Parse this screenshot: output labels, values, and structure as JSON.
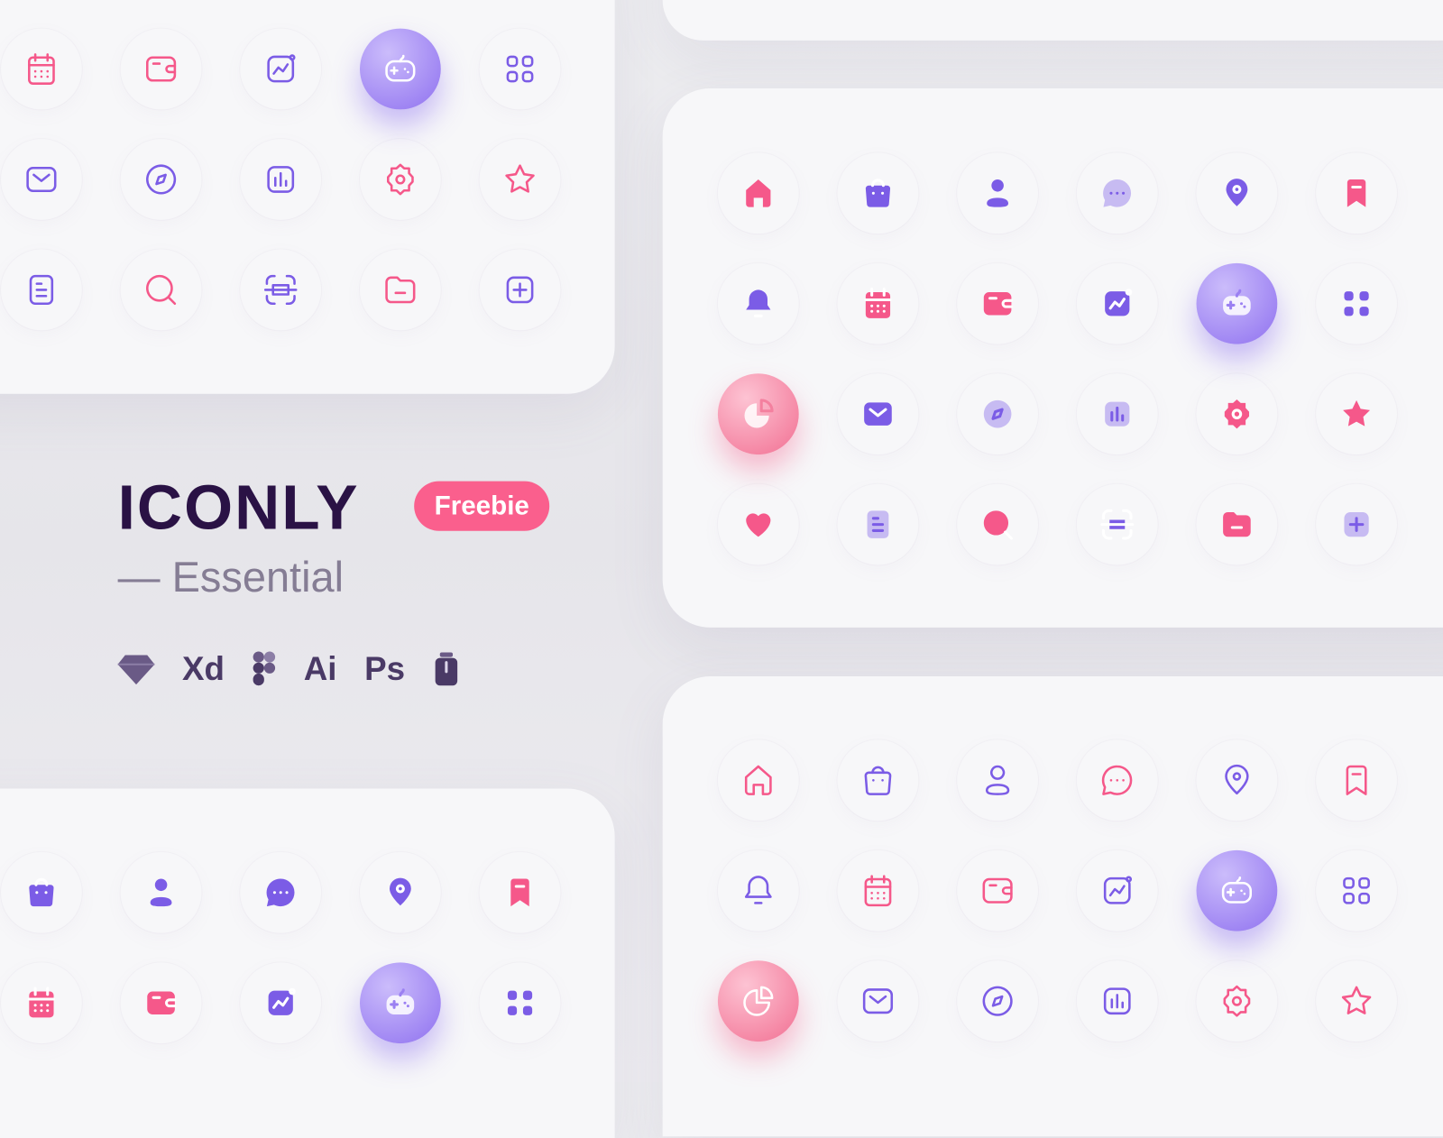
{
  "brand": {
    "title": "ICONLY",
    "badge": "Freebie",
    "subtitle": "— Essential",
    "tools": [
      {
        "kind": "icon",
        "name": "sketch-icon"
      },
      {
        "kind": "text",
        "label": "Xd"
      },
      {
        "kind": "icon",
        "name": "figma-icon"
      },
      {
        "kind": "text",
        "label": "Ai"
      },
      {
        "kind": "text",
        "label": "Ps"
      },
      {
        "kind": "icon",
        "name": "iconjar-icon"
      }
    ]
  },
  "colors": {
    "pink": "#f5588a",
    "purple": "#7b5ce6",
    "lilac": "#c7bbf2",
    "title": "#2a1245",
    "badge": "#fa5f8d"
  },
  "panels": {
    "top_left": {
      "style": "outline",
      "rows": [
        [
          [
            "calendar",
            "pink"
          ],
          [
            "wallet",
            "pink"
          ],
          [
            "activity",
            "purple"
          ],
          [
            "game",
            "hl-purple"
          ],
          [
            "category",
            "purple"
          ]
        ],
        [
          [
            "message",
            "purple"
          ],
          [
            "discovery",
            "purple"
          ],
          [
            "chart",
            "purple"
          ],
          [
            "setting",
            "pink"
          ],
          [
            "star",
            "pink"
          ]
        ],
        [
          [
            "document",
            "purple"
          ],
          [
            "search",
            "pink"
          ],
          [
            "scan",
            "purple"
          ],
          [
            "folder",
            "pink"
          ],
          [
            "plus",
            "purple"
          ]
        ]
      ]
    },
    "right_middle": {
      "style": "bold",
      "rows": [
        [
          [
            "home",
            "pink"
          ],
          [
            "bag",
            "purple"
          ],
          [
            "profile",
            "purple"
          ],
          [
            "chat",
            "lilac"
          ],
          [
            "location",
            "purple"
          ],
          [
            "bookmark",
            "pink"
          ]
        ],
        [
          [
            "notification",
            "purple"
          ],
          [
            "calendar",
            "pink"
          ],
          [
            "wallet",
            "pink"
          ],
          [
            "activity",
            "purple"
          ],
          [
            "game",
            "hl-purple"
          ],
          [
            "category",
            "purple"
          ]
        ],
        [
          [
            "graph",
            "hl-pink"
          ],
          [
            "message",
            "purple"
          ],
          [
            "discovery",
            "lilac"
          ],
          [
            "chart",
            "lilac"
          ],
          [
            "setting",
            "pink"
          ],
          [
            "star",
            "pink"
          ]
        ],
        [
          [
            "heart",
            "pink"
          ],
          [
            "document",
            "lilac"
          ],
          [
            "search",
            "pink"
          ],
          [
            "scan",
            "purple"
          ],
          [
            "folder",
            "pink"
          ],
          [
            "plus",
            "lilac"
          ]
        ]
      ]
    },
    "right_bottom": {
      "style": "outline",
      "rows": [
        [
          [
            "home",
            "pink"
          ],
          [
            "bag",
            "purple"
          ],
          [
            "profile",
            "purple"
          ],
          [
            "chat",
            "pink"
          ],
          [
            "location",
            "purple"
          ],
          [
            "bookmark",
            "pink"
          ]
        ],
        [
          [
            "notification",
            "purple"
          ],
          [
            "calendar",
            "pink"
          ],
          [
            "wallet",
            "pink"
          ],
          [
            "activity",
            "purple"
          ],
          [
            "game",
            "hl-purple"
          ],
          [
            "category",
            "purple"
          ]
        ],
        [
          [
            "graph",
            "hl-pink"
          ],
          [
            "message",
            "purple"
          ],
          [
            "discovery",
            "purple"
          ],
          [
            "chart",
            "purple"
          ],
          [
            "setting",
            "pink"
          ],
          [
            "star",
            "pink"
          ]
        ]
      ]
    },
    "bottom_left": {
      "style": "bold",
      "rows": [
        [
          [
            "bag",
            "purple"
          ],
          [
            "profile",
            "purple"
          ],
          [
            "chat",
            "purple"
          ],
          [
            "location",
            "purple"
          ],
          [
            "bookmark",
            "pink"
          ]
        ],
        [
          [
            "calendar",
            "pink"
          ],
          [
            "wallet",
            "pink"
          ],
          [
            "activity",
            "purple"
          ],
          [
            "game",
            "hl-purple"
          ],
          [
            "category",
            "purple"
          ]
        ]
      ]
    }
  }
}
